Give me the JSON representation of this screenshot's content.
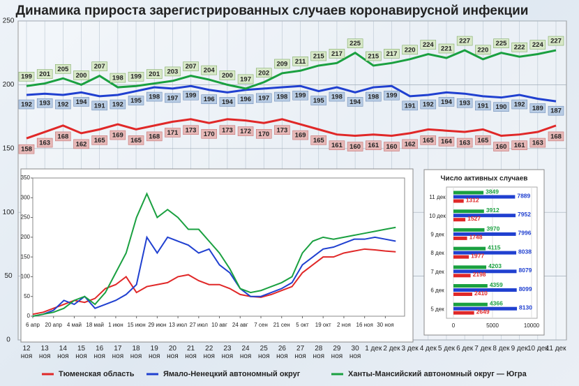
{
  "chart_data": [
    {
      "type": "line",
      "title": "Динамика прироста зарегистрированных случаев коронавирусной инфекции",
      "categories": [
        "12 ноя",
        "13 ноя",
        "14 ноя",
        "15 ноя",
        "16 ноя",
        "17 ноя",
        "18 ноя",
        "19 ноя",
        "20 ноя",
        "21 ноя",
        "22 ноя",
        "23 ноя",
        "24 ноя",
        "25 ноя",
        "26 ноя",
        "27 ноя",
        "28 ноя",
        "29 ноя",
        "30 ноя",
        "1 дек",
        "2 дек",
        "3 дек",
        "4 дек",
        "5 дек",
        "6 дек",
        "7 дек",
        "8 дек",
        "9 дек",
        "10 дек",
        "11 дек"
      ],
      "series": [
        {
          "name": "Тюменская область",
          "color": "#e02828",
          "values": [
            158,
            163,
            168,
            162,
            165,
            169,
            165,
            168,
            171,
            173,
            170,
            173,
            172,
            170,
            173,
            169,
            165,
            161,
            160,
            161,
            160,
            162,
            165,
            164,
            163,
            165,
            160,
            161,
            163,
            168
          ]
        },
        {
          "name": "Ямало-Ненецкий автономный округ",
          "color": "#2040d0",
          "values": [
            192,
            193,
            192,
            194,
            191,
            192,
            195,
            198,
            197,
            199,
            196,
            194,
            196,
            197,
            198,
            199,
            195,
            198,
            194,
            198,
            199,
            191,
            192,
            194,
            193,
            191,
            190,
            192,
            189,
            187
          ]
        },
        {
          "name": "Ханты-Мансийский автономный округ — Югра",
          "color": "#1aa040",
          "values": [
            199,
            201,
            205,
            200,
            207,
            198,
            199,
            201,
            203,
            207,
            204,
            200,
            197,
            202,
            209,
            211,
            215,
            217,
            225,
            215,
            217,
            220,
            224,
            221,
            227,
            220,
            225,
            222,
            224,
            227
          ]
        }
      ],
      "ylim": [
        0,
        250
      ],
      "yticks": [
        0,
        50,
        100,
        150,
        200,
        250
      ],
      "grid": true,
      "legend": "bottom"
    },
    {
      "type": "line",
      "x": [
        0,
        7,
        14,
        21,
        28,
        35,
        42,
        49,
        56,
        63,
        70,
        77,
        84,
        91,
        98,
        105,
        112,
        119,
        126,
        133,
        140,
        147,
        154,
        161,
        168,
        175,
        182,
        189,
        196,
        203,
        210,
        217,
        224,
        231,
        238,
        245
      ],
      "xlim": [
        0,
        251
      ],
      "xticks": [
        {
          "value": 0,
          "label": "6 апр"
        },
        {
          "value": 14,
          "label": "20 апр"
        },
        {
          "value": 28,
          "label": "4 май"
        },
        {
          "value": 42,
          "label": "18 май"
        },
        {
          "value": 56,
          "label": "1 июн"
        },
        {
          "value": 70,
          "label": "15 июн"
        },
        {
          "value": 84,
          "label": "29 июн"
        },
        {
          "value": 98,
          "label": "13 июл"
        },
        {
          "value": 112,
          "label": "27 июл"
        },
        {
          "value": 126,
          "label": "10 авг"
        },
        {
          "value": 140,
          "label": "24 авг"
        },
        {
          "value": 154,
          "label": "7 сен"
        },
        {
          "value": 168,
          "label": "21 сен"
        },
        {
          "value": 182,
          "label": "5 окт"
        },
        {
          "value": 196,
          "label": "19 окт"
        },
        {
          "value": 210,
          "label": "2 ноя"
        },
        {
          "value": 224,
          "label": "16 ноя"
        },
        {
          "value": 238,
          "label": "30 ноя"
        }
      ],
      "ylim": [
        0,
        350
      ],
      "yticks": [
        0,
        50,
        100,
        150,
        200,
        250,
        300,
        350
      ],
      "series": [
        {
          "color": "#e02828",
          "values": [
            5,
            10,
            20,
            30,
            40,
            35,
            45,
            70,
            80,
            100,
            60,
            75,
            80,
            85,
            100,
            105,
            90,
            80,
            80,
            70,
            55,
            50,
            48,
            55,
            65,
            75,
            110,
            130,
            150,
            150,
            160,
            165,
            170,
            168,
            165,
            163
          ]
        },
        {
          "color": "#2040d0",
          "values": [
            0,
            5,
            15,
            40,
            30,
            50,
            20,
            30,
            40,
            55,
            80,
            200,
            160,
            200,
            190,
            180,
            160,
            170,
            130,
            110,
            70,
            50,
            50,
            60,
            70,
            85,
            130,
            150,
            170,
            175,
            185,
            195,
            195,
            200,
            195,
            190
          ]
        },
        {
          "color": "#1aa040",
          "values": [
            0,
            5,
            10,
            20,
            40,
            50,
            30,
            60,
            110,
            160,
            250,
            310,
            250,
            270,
            250,
            220,
            220,
            190,
            160,
            120,
            70,
            60,
            65,
            75,
            85,
            100,
            160,
            190,
            200,
            195,
            200,
            205,
            210,
            215,
            220,
            225
          ]
        }
      ]
    },
    {
      "type": "barh",
      "title": "Число активных случаев",
      "categories": [
        "11 дек",
        "10 дек",
        "9 дек",
        "8 дек",
        "7 дек",
        "6 дек",
        "5 дек"
      ],
      "series": [
        {
          "color": "#1aa040",
          "values": [
            3849,
            3912,
            3970,
            4115,
            4203,
            4359,
            4366
          ]
        },
        {
          "color": "#2040d0",
          "values": [
            7889,
            7952,
            7996,
            8038,
            8079,
            8099,
            8130
          ]
        },
        {
          "color": "#e02828",
          "values": [
            1312,
            1527,
            1748,
            1977,
            2198,
            2410,
            2649
          ]
        }
      ],
      "xlim": [
        0,
        10000
      ],
      "xticks": [
        0,
        5000,
        10000
      ]
    }
  ]
}
